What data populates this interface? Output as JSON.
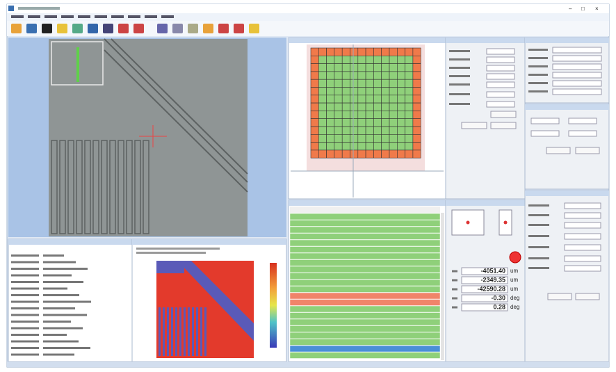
{
  "readouts": [
    {
      "value": "-4051.40",
      "unit": "um"
    },
    {
      "value": "-2349.35",
      "unit": "um"
    },
    {
      "value": "-42590.28",
      "unit": "um"
    },
    {
      "value": "-0.30",
      "unit": "deg"
    },
    {
      "value": "0.28",
      "unit": "deg"
    }
  ]
}
